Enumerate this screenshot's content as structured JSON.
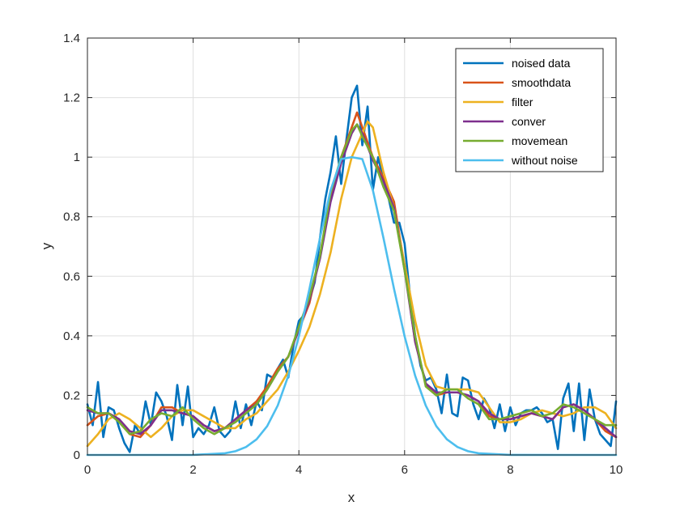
{
  "chart_data": {
    "type": "line",
    "title": "",
    "xlabel": "x",
    "ylabel": "y",
    "xlim": [
      0,
      10
    ],
    "ylim": [
      0,
      1.4
    ],
    "xticks": [
      "0",
      "2",
      "4",
      "6",
      "8",
      "10"
    ],
    "yticks": [
      "0",
      "0.2",
      "0.4",
      "0.6",
      "0.8",
      "1",
      "1.2",
      "1.4"
    ],
    "grid": true,
    "legend_position": "top-right",
    "series": [
      {
        "name": "noised data",
        "color": "#0072BD",
        "x": [
          0,
          0.1,
          0.2,
          0.3,
          0.4,
          0.5,
          0.6,
          0.7,
          0.8,
          0.9,
          1.0,
          1.1,
          1.2,
          1.3,
          1.4,
          1.5,
          1.6,
          1.7,
          1.8,
          1.9,
          2.0,
          2.1,
          2.2,
          2.3,
          2.4,
          2.5,
          2.6,
          2.7,
          2.8,
          2.9,
          3.0,
          3.1,
          3.2,
          3.3,
          3.4,
          3.5,
          3.6,
          3.7,
          3.8,
          3.9,
          4.0,
          4.1,
          4.2,
          4.3,
          4.4,
          4.5,
          4.6,
          4.7,
          4.8,
          4.9,
          5.0,
          5.1,
          5.2,
          5.3,
          5.4,
          5.5,
          5.6,
          5.7,
          5.8,
          5.9,
          6.0,
          6.1,
          6.2,
          6.3,
          6.4,
          6.5,
          6.6,
          6.7,
          6.8,
          6.9,
          7.0,
          7.1,
          7.2,
          7.3,
          7.4,
          7.5,
          7.6,
          7.7,
          7.8,
          7.9,
          8.0,
          8.1,
          8.2,
          8.3,
          8.4,
          8.5,
          8.6,
          8.7,
          8.8,
          8.9,
          9.0,
          9.1,
          9.2,
          9.3,
          9.4,
          9.5,
          9.6,
          9.7,
          9.8,
          9.9,
          10.0
        ],
        "y": [
          0.17,
          0.1,
          0.245,
          0.06,
          0.16,
          0.15,
          0.09,
          0.04,
          0.01,
          0.1,
          0.07,
          0.18,
          0.1,
          0.21,
          0.18,
          0.13,
          0.05,
          0.235,
          0.1,
          0.23,
          0.06,
          0.09,
          0.07,
          0.1,
          0.16,
          0.08,
          0.06,
          0.08,
          0.18,
          0.09,
          0.17,
          0.1,
          0.18,
          0.15,
          0.27,
          0.26,
          0.29,
          0.32,
          0.26,
          0.37,
          0.45,
          0.47,
          0.52,
          0.58,
          0.73,
          0.86,
          0.95,
          1.07,
          0.91,
          1.06,
          1.2,
          1.24,
          1.04,
          1.17,
          0.89,
          1.0,
          0.92,
          0.86,
          0.78,
          0.78,
          0.71,
          0.54,
          0.4,
          0.3,
          0.25,
          0.26,
          0.22,
          0.14,
          0.27,
          0.14,
          0.13,
          0.26,
          0.25,
          0.17,
          0.12,
          0.19,
          0.16,
          0.09,
          0.17,
          0.08,
          0.16,
          0.1,
          0.14,
          0.15,
          0.15,
          0.16,
          0.14,
          0.11,
          0.12,
          0.02,
          0.19,
          0.24,
          0.08,
          0.24,
          0.05,
          0.22,
          0.12,
          0.07,
          0.05,
          0.03,
          0.18
        ]
      },
      {
        "name": "smoothdata",
        "color": "#D95319",
        "x": [
          0,
          0.2,
          0.4,
          0.6,
          0.8,
          1.0,
          1.2,
          1.4,
          1.6,
          1.8,
          2.0,
          2.2,
          2.4,
          2.6,
          2.8,
          3.0,
          3.2,
          3.4,
          3.6,
          3.8,
          4.0,
          4.2,
          4.4,
          4.6,
          4.8,
          5.0,
          5.1,
          5.2,
          5.4,
          5.6,
          5.8,
          6.0,
          6.2,
          6.4,
          6.6,
          6.8,
          7.0,
          7.2,
          7.4,
          7.6,
          7.8,
          8.0,
          8.2,
          8.4,
          8.6,
          8.8,
          9.0,
          9.2,
          9.4,
          9.6,
          9.8,
          10.0
        ],
        "y": [
          0.1,
          0.13,
          0.14,
          0.12,
          0.07,
          0.06,
          0.1,
          0.16,
          0.16,
          0.14,
          0.13,
          0.1,
          0.08,
          0.09,
          0.12,
          0.15,
          0.18,
          0.23,
          0.29,
          0.33,
          0.42,
          0.51,
          0.67,
          0.87,
          1.0,
          1.1,
          1.15,
          1.1,
          1.0,
          0.93,
          0.85,
          0.63,
          0.38,
          0.24,
          0.2,
          0.21,
          0.21,
          0.2,
          0.18,
          0.13,
          0.12,
          0.12,
          0.13,
          0.14,
          0.13,
          0.12,
          0.16,
          0.17,
          0.15,
          0.12,
          0.08,
          0.06
        ]
      },
      {
        "name": "filter",
        "color": "#EDB120",
        "x": [
          0,
          0.2,
          0.4,
          0.6,
          0.8,
          1.0,
          1.2,
          1.4,
          1.6,
          1.8,
          2.0,
          2.2,
          2.4,
          2.6,
          2.8,
          3.0,
          3.2,
          3.4,
          3.6,
          3.8,
          4.0,
          4.2,
          4.4,
          4.6,
          4.8,
          5.0,
          5.2,
          5.3,
          5.4,
          5.6,
          5.8,
          6.0,
          6.2,
          6.4,
          6.6,
          6.8,
          7.0,
          7.2,
          7.4,
          7.6,
          7.8,
          8.0,
          8.2,
          8.4,
          8.6,
          8.8,
          9.0,
          9.2,
          9.4,
          9.6,
          9.8,
          10.0
        ],
        "y": [
          0.03,
          0.07,
          0.12,
          0.14,
          0.12,
          0.09,
          0.06,
          0.09,
          0.13,
          0.15,
          0.15,
          0.13,
          0.11,
          0.09,
          0.09,
          0.12,
          0.14,
          0.18,
          0.22,
          0.28,
          0.35,
          0.43,
          0.54,
          0.68,
          0.86,
          1.0,
          1.08,
          1.12,
          1.1,
          0.95,
          0.83,
          0.64,
          0.45,
          0.3,
          0.23,
          0.22,
          0.22,
          0.22,
          0.21,
          0.16,
          0.11,
          0.11,
          0.12,
          0.14,
          0.15,
          0.14,
          0.13,
          0.14,
          0.16,
          0.16,
          0.14,
          0.09
        ]
      },
      {
        "name": "conver",
        "color": "#7E2F8E",
        "x": [
          0,
          0.2,
          0.4,
          0.6,
          0.8,
          1.0,
          1.2,
          1.4,
          1.6,
          1.8,
          2.0,
          2.2,
          2.4,
          2.6,
          2.8,
          3.0,
          3.2,
          3.4,
          3.6,
          3.8,
          4.0,
          4.2,
          4.4,
          4.6,
          4.8,
          5.0,
          5.1,
          5.2,
          5.4,
          5.6,
          5.8,
          6.0,
          6.2,
          6.4,
          6.6,
          6.8,
          7.0,
          7.2,
          7.4,
          7.6,
          7.8,
          8.0,
          8.2,
          8.4,
          8.6,
          8.8,
          9.0,
          9.2,
          9.4,
          9.6,
          9.8,
          10.0
        ],
        "y": [
          0.15,
          0.14,
          0.14,
          0.12,
          0.08,
          0.07,
          0.1,
          0.15,
          0.15,
          0.14,
          0.13,
          0.1,
          0.08,
          0.09,
          0.12,
          0.15,
          0.17,
          0.22,
          0.28,
          0.33,
          0.42,
          0.52,
          0.66,
          0.85,
          0.98,
          1.08,
          1.11,
          1.08,
          0.99,
          0.92,
          0.83,
          0.62,
          0.38,
          0.24,
          0.21,
          0.21,
          0.21,
          0.2,
          0.18,
          0.14,
          0.12,
          0.12,
          0.13,
          0.14,
          0.13,
          0.12,
          0.16,
          0.17,
          0.15,
          0.12,
          0.09,
          0.06
        ]
      },
      {
        "name": "movemean",
        "color": "#77AC30",
        "x": [
          0,
          0.2,
          0.4,
          0.6,
          0.8,
          1.0,
          1.2,
          1.4,
          1.6,
          1.8,
          2.0,
          2.2,
          2.4,
          2.6,
          2.8,
          3.0,
          3.2,
          3.4,
          3.6,
          3.8,
          4.0,
          4.2,
          4.4,
          4.6,
          4.8,
          5.0,
          5.1,
          5.2,
          5.4,
          5.6,
          5.8,
          6.0,
          6.2,
          6.4,
          6.6,
          6.8,
          7.0,
          7.2,
          7.4,
          7.6,
          7.8,
          8.0,
          8.2,
          8.4,
          8.6,
          8.8,
          9.0,
          9.2,
          9.4,
          9.6,
          9.8,
          10.0
        ],
        "y": [
          0.16,
          0.14,
          0.14,
          0.11,
          0.07,
          0.08,
          0.12,
          0.14,
          0.13,
          0.16,
          0.12,
          0.09,
          0.07,
          0.09,
          0.11,
          0.14,
          0.17,
          0.22,
          0.28,
          0.33,
          0.43,
          0.53,
          0.67,
          0.88,
          1.0,
          1.09,
          1.11,
          1.07,
          1.0,
          0.9,
          0.82,
          0.62,
          0.4,
          0.23,
          0.2,
          0.22,
          0.22,
          0.19,
          0.17,
          0.12,
          0.12,
          0.13,
          0.14,
          0.15,
          0.13,
          0.14,
          0.17,
          0.16,
          0.14,
          0.12,
          0.1,
          0.1
        ]
      },
      {
        "name": "without noise",
        "color": "#4DBEEE",
        "x": [
          0,
          1,
          2,
          2.6,
          2.8,
          3.0,
          3.2,
          3.4,
          3.6,
          3.8,
          4.0,
          4.2,
          4.4,
          4.6,
          4.8,
          5.0,
          5.2,
          5.4,
          5.6,
          5.8,
          6.0,
          6.2,
          6.4,
          6.6,
          6.8,
          7.0,
          7.2,
          7.4,
          8,
          9,
          10
        ],
        "y": [
          0,
          0,
          0.0003,
          0.0056,
          0.0126,
          0.0266,
          0.0525,
          0.0966,
          0.166,
          0.266,
          0.3985,
          0.5577,
          0.7288,
          0.8889,
          0.9936,
          1.0,
          0.9936,
          0.8889,
          0.7288,
          0.5577,
          0.3985,
          0.266,
          0.166,
          0.0966,
          0.0525,
          0.0266,
          0.0126,
          0.0056,
          0.0003,
          0,
          0
        ]
      }
    ]
  }
}
